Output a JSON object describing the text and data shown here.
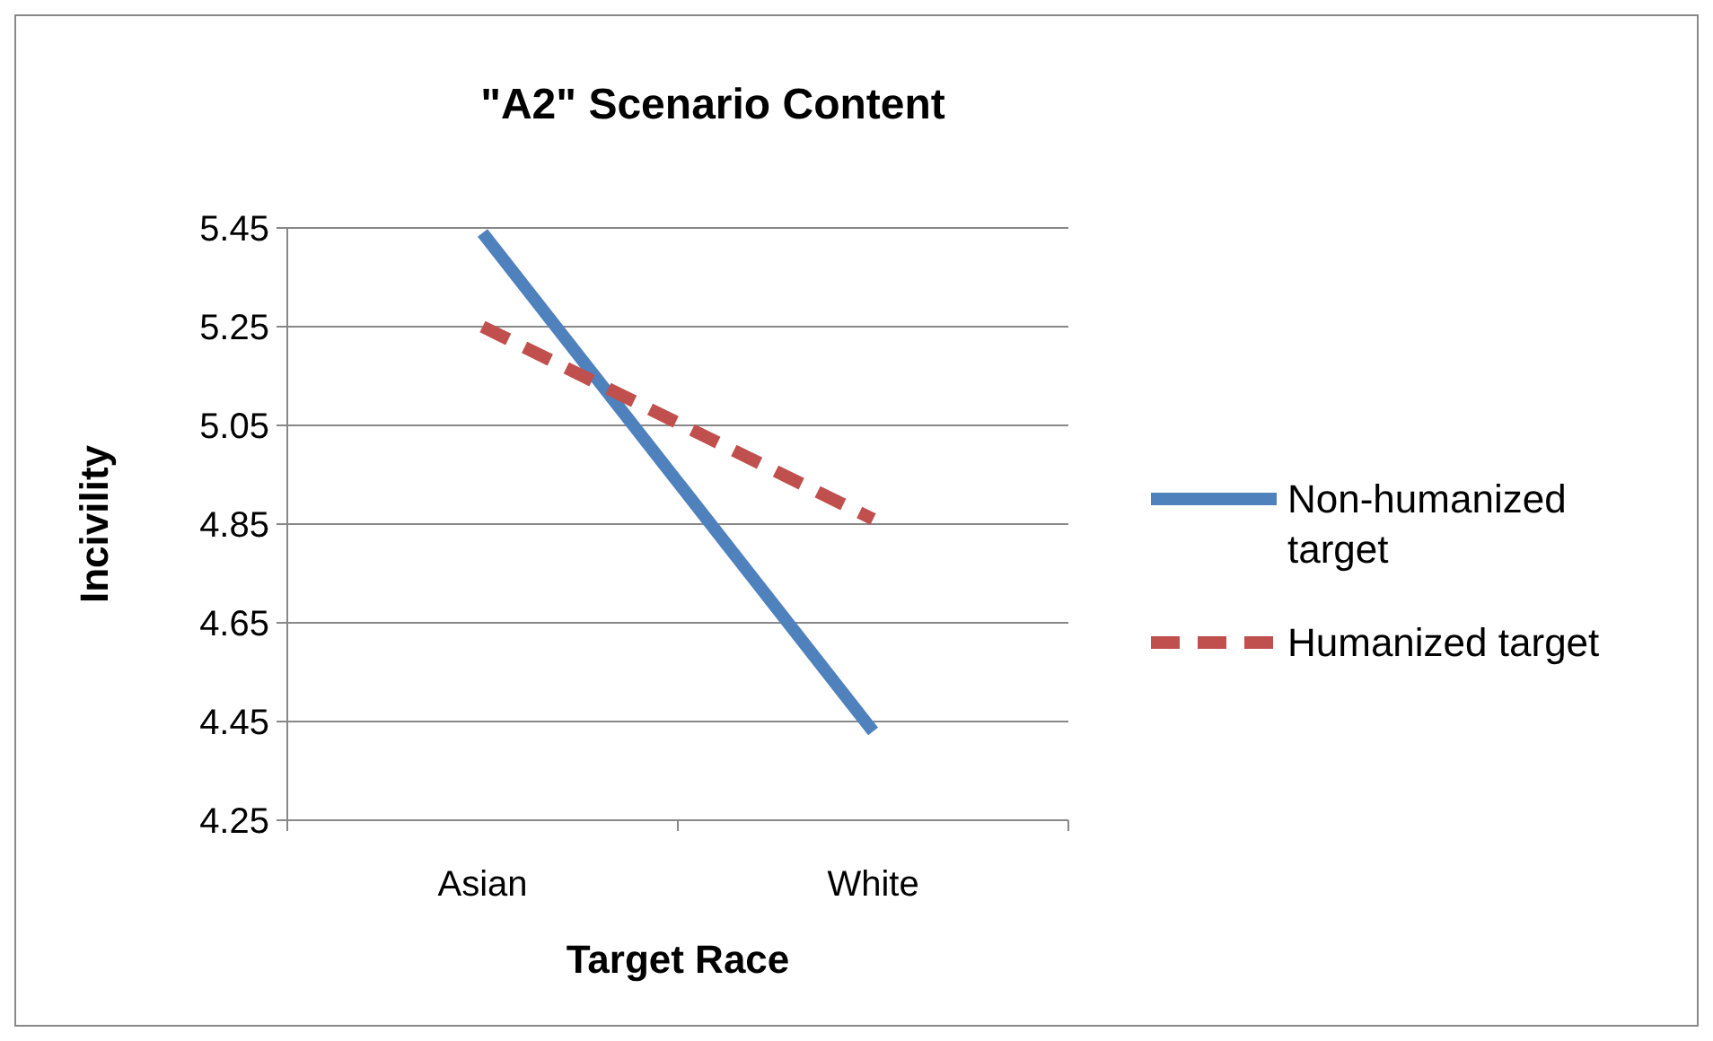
{
  "chart_data": {
    "type": "line",
    "title": "\"A2\" Scenario Content",
    "xlabel": "Target Race",
    "ylabel": "Incivility",
    "categories": [
      "Asian",
      "White"
    ],
    "series": [
      {
        "name": "Non-humanized target",
        "color": "#4f81bd",
        "values": [
          5.44,
          4.43
        ],
        "line_style": "solid"
      },
      {
        "name": "Humanized target",
        "color": "#c0504d",
        "values": [
          5.25,
          4.86
        ],
        "line_style": "dashed"
      }
    ],
    "ylim": [
      4.25,
      5.45
    ],
    "yticks": [
      4.25,
      4.45,
      4.65,
      4.85,
      5.05,
      5.25,
      5.45
    ],
    "grid": "y",
    "legend": "right"
  }
}
